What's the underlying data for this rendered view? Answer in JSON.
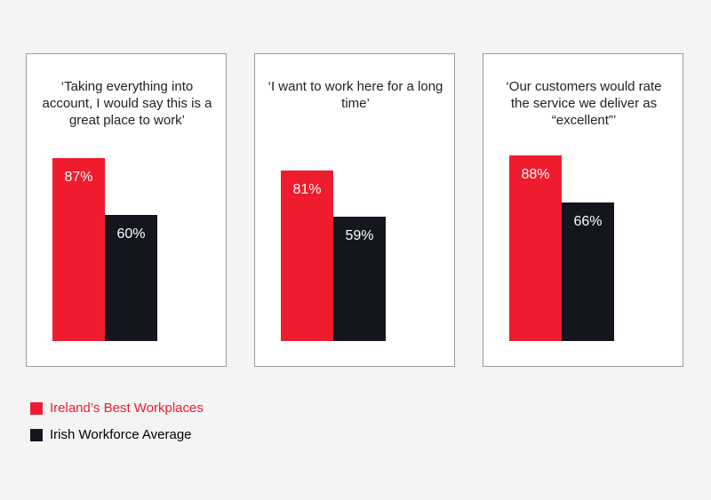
{
  "chart_data": {
    "type": "bar",
    "categories": [
      "‘Taking everything into account, I would say this is a great place to work’",
      "‘I want to work here for a long time’",
      "‘Our customers would rate the service we deliver as “excellent”’"
    ],
    "series": [
      {
        "name": "Ireland’s Best Workplaces",
        "color": "#ee1c2e",
        "values": [
          87,
          81,
          88
        ],
        "value_labels": [
          "87%",
          "81%",
          "88%"
        ]
      },
      {
        "name": "Irish Workforce Average",
        "color": "#14161d",
        "values": [
          60,
          59,
          66
        ],
        "value_labels": [
          "60%",
          "59%",
          "66%"
        ]
      }
    ]
  }
}
